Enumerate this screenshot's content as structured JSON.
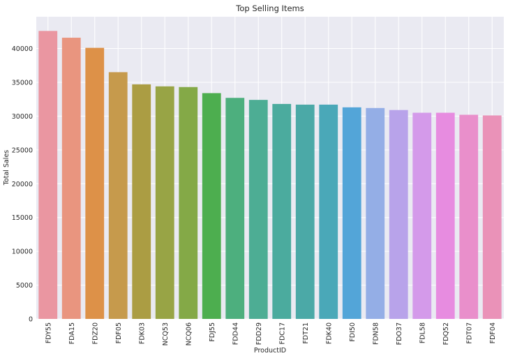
{
  "chart_data": {
    "type": "bar",
    "title": "Top Selling Items",
    "xlabel": "ProductID",
    "ylabel": "Total Sales",
    "ylim": [
      0,
      44700
    ],
    "yticks": [
      0,
      5000,
      10000,
      15000,
      20000,
      25000,
      30000,
      35000,
      40000
    ],
    "grid": true,
    "categories": [
      "FDY55",
      "FDA15",
      "FDZ20",
      "FDF05",
      "FDK03",
      "NCQ53",
      "NCQ06",
      "FDJ55",
      "FDD44",
      "FDD29",
      "FDC17",
      "FDT21",
      "FDK40",
      "FDI50",
      "FDN58",
      "FDO37",
      "FDL58",
      "FDQ52",
      "FDT07",
      "FDF04"
    ],
    "values": [
      42600,
      41600,
      40100,
      36500,
      34700,
      34400,
      34300,
      33400,
      32700,
      32400,
      31800,
      31700,
      31700,
      31300,
      31200,
      30900,
      30500,
      30500,
      30200,
      30100
    ],
    "colors": [
      "#ea96a1",
      "#e9957f",
      "#dd9148",
      "#c69a4c",
      "#ab9d43",
      "#98a445",
      "#84a947",
      "#4dae4f",
      "#4daf7e",
      "#4dad94",
      "#4bab9e",
      "#4ba9a7",
      "#4aa8b8",
      "#53a5d8",
      "#94aee6",
      "#b8a3ea",
      "#d49aea",
      "#e78ce0",
      "#e98fcb",
      "#ea92b8"
    ]
  }
}
